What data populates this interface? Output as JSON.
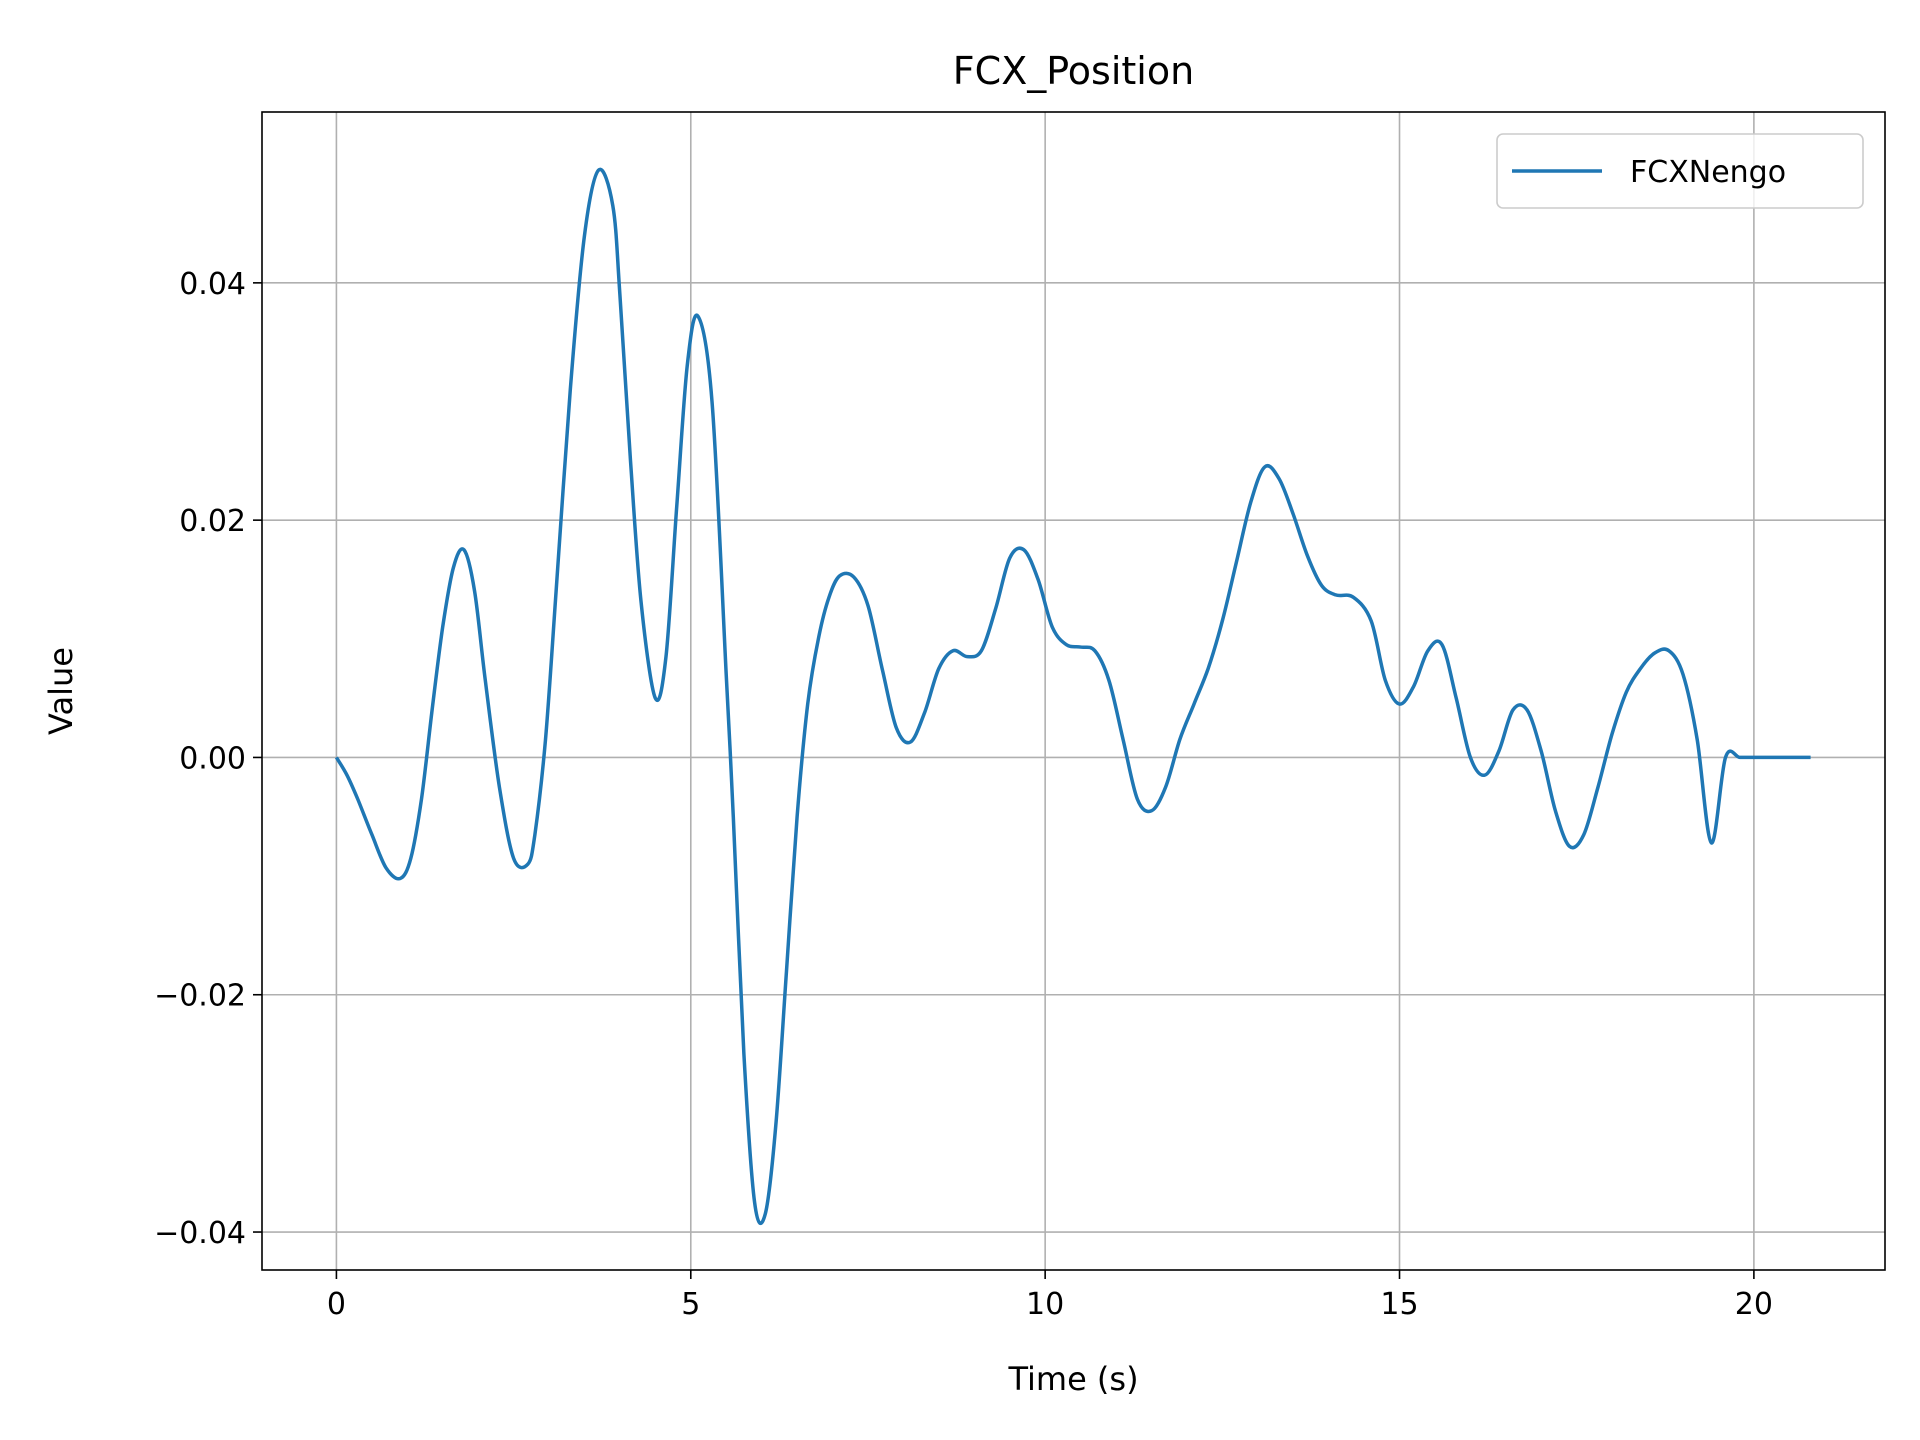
{
  "chart_data": {
    "type": "line",
    "title": "FCX_Position",
    "xlabel": "Time (s)",
    "ylabel": "Value",
    "xlim": [
      -1.05,
      21.85
    ],
    "ylim": [
      -0.0432,
      0.0544
    ],
    "xticks": [
      0,
      5,
      10,
      15,
      20
    ],
    "xtick_labels": [
      "0",
      "5",
      "10",
      "15",
      "20"
    ],
    "yticks": [
      -0.04,
      -0.02,
      0.0,
      0.02,
      0.04
    ],
    "ytick_labels": [
      "−0.04",
      "−0.02",
      "0.00",
      "0.02",
      "0.04"
    ],
    "grid": true,
    "legend_position": "top-right",
    "series": [
      {
        "name": "FCXNengo",
        "color": "#1f77b4",
        "x": [
          0,
          0.15,
          0.3,
          0.5,
          0.7,
          0.9,
          1.05,
          1.2,
          1.35,
          1.5,
          1.65,
          1.8,
          1.95,
          2.1,
          2.3,
          2.5,
          2.7,
          2.8,
          2.95,
          3.1,
          3.3,
          3.5,
          3.7,
          3.9,
          4.0,
          4.15,
          4.3,
          4.5,
          4.65,
          4.8,
          4.95,
          5.1,
          5.3,
          5.5,
          5.6,
          5.75,
          5.9,
          6.05,
          6.2,
          6.35,
          6.5,
          6.65,
          6.8,
          6.95,
          7.1,
          7.3,
          7.5,
          7.7,
          7.9,
          8.1,
          8.3,
          8.5,
          8.7,
          8.9,
          9.1,
          9.3,
          9.5,
          9.7,
          9.9,
          10.1,
          10.3,
          10.5,
          10.7,
          10.9,
          11.1,
          11.3,
          11.5,
          11.7,
          11.9,
          12.1,
          12.3,
          12.5,
          12.7,
          12.9,
          13.1,
          13.3,
          13.5,
          13.7,
          13.9,
          14.1,
          14.35,
          14.6,
          14.8,
          15.0,
          15.2,
          15.4,
          15.6,
          15.8,
          16.0,
          16.2,
          16.4,
          16.6,
          16.8,
          17.0,
          17.2,
          17.4,
          17.6,
          17.8,
          18.0,
          18.2,
          18.4,
          18.6,
          18.8,
          19.0,
          19.2,
          19.4,
          19.6,
          19.8,
          20.0,
          20.2,
          20.35,
          20.5,
          20.65,
          20.8
        ],
        "y": [
          0.0,
          -0.0015,
          -0.0035,
          -0.0065,
          -0.0093,
          -0.0102,
          -0.0085,
          -0.0035,
          0.004,
          0.011,
          0.016,
          0.0175,
          0.014,
          0.0065,
          -0.0025,
          -0.0085,
          -0.009,
          -0.0065,
          0.0015,
          0.014,
          0.031,
          0.044,
          0.0495,
          0.0465,
          0.039,
          0.025,
          0.013,
          0.005,
          0.0085,
          0.021,
          0.033,
          0.0372,
          0.03,
          0.007,
          -0.005,
          -0.025,
          -0.0375,
          -0.0385,
          -0.031,
          -0.018,
          -0.005,
          0.0045,
          0.01,
          0.0135,
          0.0153,
          0.0152,
          0.0128,
          0.0075,
          0.0025,
          0.0013,
          0.0038,
          0.0075,
          0.009,
          0.0085,
          0.009,
          0.0125,
          0.0168,
          0.0175,
          0.015,
          0.011,
          0.0095,
          0.0093,
          0.009,
          0.0065,
          0.0015,
          -0.0035,
          -0.0045,
          -0.0025,
          0.0015,
          0.0045,
          0.0075,
          0.0115,
          0.0165,
          0.0215,
          0.0245,
          0.0235,
          0.0205,
          0.017,
          0.0145,
          0.0137,
          0.0135,
          0.0115,
          0.0065,
          0.0045,
          0.006,
          0.009,
          0.0095,
          0.005,
          0.0,
          -0.0015,
          0.0005,
          0.004,
          0.004,
          0.0005,
          -0.0045,
          -0.0075,
          -0.0065,
          -0.0025,
          0.002,
          0.0055,
          0.0075,
          0.0088,
          0.009,
          0.007,
          0.0015,
          -0.0072,
          0.0,
          0.0,
          0.0,
          0.0,
          0.0,
          0.0,
          0.0,
          0.0
        ]
      }
    ]
  }
}
